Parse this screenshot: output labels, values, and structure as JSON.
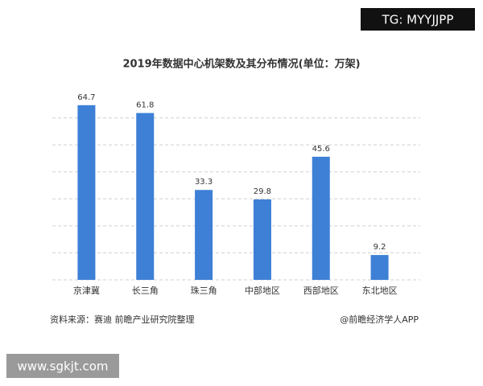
{
  "chart_data": {
    "type": "bar",
    "title": "2019年数据中心机架数及其分布情况(单位：万架)",
    "categories": [
      "京津冀",
      "长三角",
      "珠三角",
      "中部地区",
      "西部地区",
      "东北地区"
    ],
    "values": [
      64.7,
      61.8,
      33.3,
      29.8,
      45.6,
      9.2
    ],
    "color": "#3d80d6",
    "ylim": [
      0,
      70
    ],
    "yticks": [
      0,
      10,
      20,
      30,
      40,
      50,
      60
    ],
    "grid": true,
    "source": "资料来源：赛迪 前瞻产业研究院整理",
    "credit": "@前瞻经济学人APP"
  },
  "overlays": {
    "top_tag": "TG: MYYJJPP",
    "bottom_tag": "www.sgkjt.com"
  }
}
